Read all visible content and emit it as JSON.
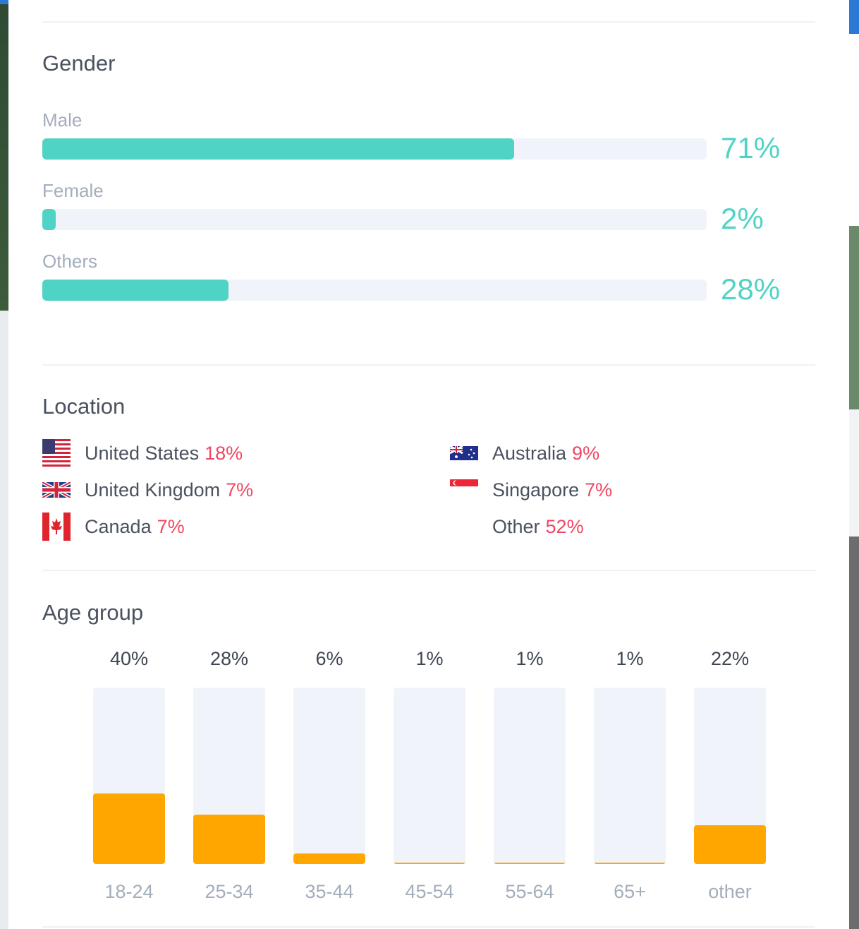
{
  "gender": {
    "title": "Gender",
    "items": [
      {
        "label": "Male",
        "percent_text": "71%",
        "fraction": 0.71
      },
      {
        "label": "Female",
        "percent_text": "2%",
        "fraction": 0.02
      },
      {
        "label": "Others",
        "percent_text": "28%",
        "fraction": 0.28
      }
    ],
    "bar_color": "#4fd3c4"
  },
  "location": {
    "title": "Location",
    "items": [
      {
        "name": "United States",
        "percent_text": "18%",
        "flag": "us-flag-icon"
      },
      {
        "name": "United Kingdom",
        "percent_text": "7%",
        "flag": "uk-flag-icon"
      },
      {
        "name": "Canada",
        "percent_text": "7%",
        "flag": "canada-flag-icon"
      },
      {
        "name": "Australia",
        "percent_text": "9%",
        "flag": "australia-flag-icon"
      },
      {
        "name": "Singapore",
        "percent_text": "7%",
        "flag": "singapore-flag-icon"
      },
      {
        "name": "Other",
        "percent_text": "52%",
        "flag": ""
      }
    ],
    "percent_color": "#f04663"
  },
  "age": {
    "title": "Age group",
    "groups": [
      {
        "label": "18-24",
        "percent_text": "40%",
        "fraction": 0.4
      },
      {
        "label": "25-34",
        "percent_text": "28%",
        "fraction": 0.28
      },
      {
        "label": "35-44",
        "percent_text": "6%",
        "fraction": 0.06
      },
      {
        "label": "45-54",
        "percent_text": "1%",
        "fraction": 0.01
      },
      {
        "label": "55-64",
        "percent_text": "1%",
        "fraction": 0.01
      },
      {
        "label": "65+",
        "percent_text": "1%",
        "fraction": 0.01
      },
      {
        "label": "other",
        "percent_text": "22%",
        "fraction": 0.22
      }
    ],
    "bar_color": "#ffa600"
  }
}
